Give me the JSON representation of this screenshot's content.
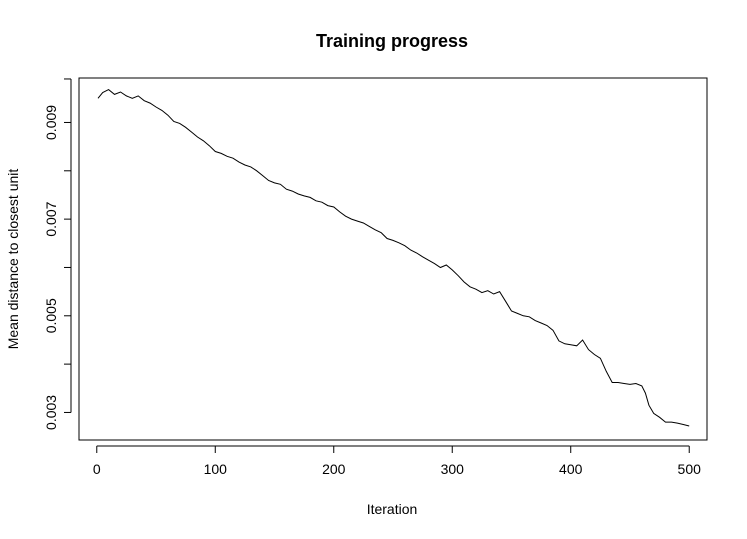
{
  "chart_data": {
    "type": "line",
    "title": "Training progress",
    "xlabel": "Iteration",
    "ylabel": "Mean distance to closest unit",
    "xlim": [
      -15,
      515
    ],
    "ylim": [
      0.00243,
      0.00992
    ],
    "xticks": [
      0,
      100,
      200,
      300,
      400,
      500
    ],
    "xtick_labels": [
      "0",
      "100",
      "200",
      "300",
      "400",
      "500"
    ],
    "yticks": [
      0.003,
      0.005,
      0.007,
      0.009
    ],
    "ytick_labels": [
      "0.003",
      "0.005",
      "0.007",
      "0.009"
    ],
    "yticks_minor": [
      0.004,
      0.006,
      0.008,
      0.0099
    ],
    "grid": false,
    "legend": "none",
    "line_color": "#000000",
    "series": [
      {
        "x": [
          1,
          5,
          10,
          15,
          20,
          25,
          30,
          35,
          40,
          45,
          50,
          55,
          60,
          65,
          70,
          75,
          80,
          85,
          90,
          95,
          100,
          105,
          110,
          115,
          120,
          125,
          130,
          135,
          140,
          145,
          150,
          155,
          160,
          165,
          170,
          175,
          180,
          185,
          190,
          195,
          200,
          205,
          210,
          215,
          220,
          225,
          230,
          235,
          240,
          245,
          250,
          255,
          260,
          265,
          270,
          275,
          280,
          285,
          290,
          295,
          300,
          305,
          310,
          315,
          320,
          325,
          330,
          335,
          340,
          345,
          350,
          355,
          360,
          365,
          370,
          375,
          380,
          385,
          390,
          395,
          400,
          405,
          410,
          415,
          420,
          425,
          430,
          435,
          440,
          445,
          450,
          455,
          460,
          463,
          466,
          470,
          475,
          480,
          485,
          490,
          495,
          500
        ],
        "y": [
          0.0095,
          0.00962,
          0.00968,
          0.00958,
          0.00963,
          0.00955,
          0.0095,
          0.00955,
          0.00945,
          0.0094,
          0.00932,
          0.00925,
          0.00915,
          0.00902,
          0.00898,
          0.0089,
          0.0088,
          0.0087,
          0.00862,
          0.00852,
          0.0084,
          0.00836,
          0.0083,
          0.00826,
          0.00818,
          0.00812,
          0.00808,
          0.008,
          0.0079,
          0.0078,
          0.00775,
          0.00772,
          0.00762,
          0.00758,
          0.00752,
          0.00748,
          0.00745,
          0.00738,
          0.00735,
          0.00728,
          0.00725,
          0.00715,
          0.00706,
          0.007,
          0.00696,
          0.00692,
          0.00685,
          0.00678,
          0.00672,
          0.0066,
          0.00656,
          0.00651,
          0.00645,
          0.00636,
          0.0063,
          0.00622,
          0.00615,
          0.00608,
          0.006,
          0.00605,
          0.00595,
          0.00583,
          0.0057,
          0.0056,
          0.00555,
          0.00548,
          0.00552,
          0.00545,
          0.0055,
          0.0053,
          0.0051,
          0.00505,
          0.005,
          0.00498,
          0.0049,
          0.00485,
          0.0048,
          0.0047,
          0.00448,
          0.00442,
          0.0044,
          0.00438,
          0.0045,
          0.0043,
          0.0042,
          0.00412,
          0.00385,
          0.00362,
          0.00362,
          0.0036,
          0.00358,
          0.0036,
          0.00355,
          0.0034,
          0.00315,
          0.00298,
          0.0029,
          0.0028,
          0.0028,
          0.00278,
          0.00275,
          0.00272
        ]
      }
    ]
  }
}
